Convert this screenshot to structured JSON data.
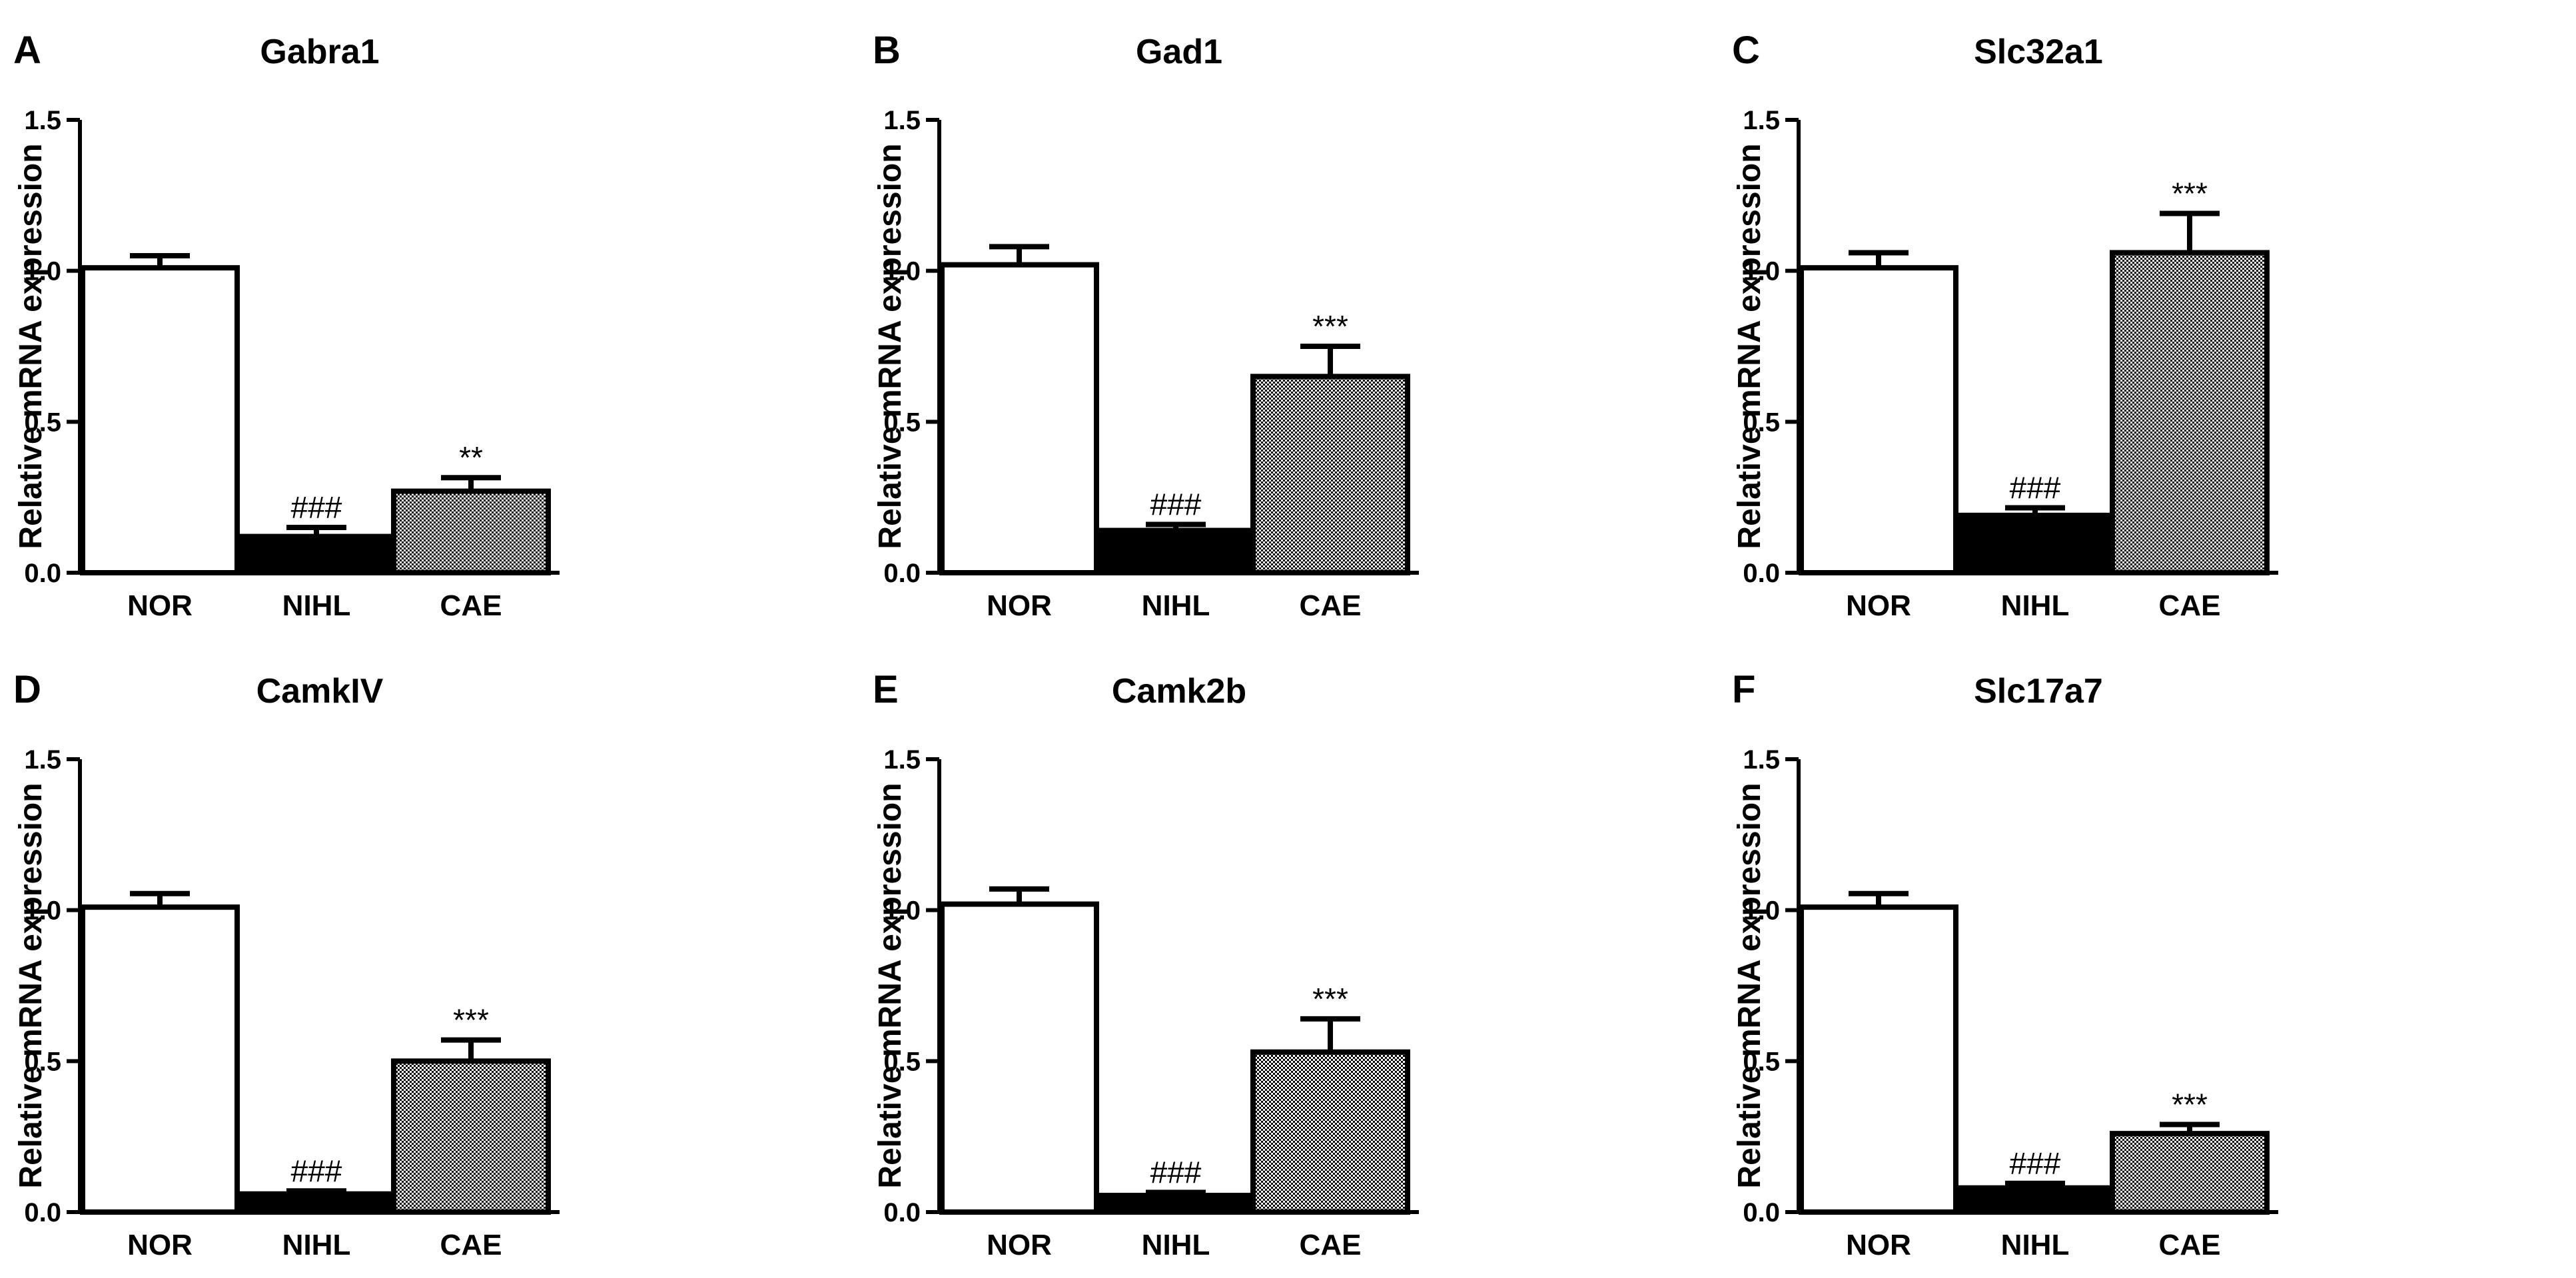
{
  "figure": {
    "ylabel": "Relative mRNA expression",
    "colors": {
      "outline": "#000000",
      "nor_fill": "#ffffff",
      "nihl_fill": "#000000",
      "cae_pattern": "checker-dots"
    }
  },
  "chart_data": [
    {
      "type": "bar",
      "letter": "A",
      "title": "Gabra1",
      "ylabel": "Relative mRNA expression",
      "ylim": [
        0,
        1.5
      ],
      "yticks": [
        "0.0",
        "0.5",
        "1.0",
        "1.5"
      ],
      "categories": [
        "NOR",
        "NIHL",
        "CAE"
      ],
      "values": [
        1.01,
        0.12,
        0.27
      ],
      "errors": [
        0.04,
        0.03,
        0.045
      ],
      "annotations": [
        "",
        "###",
        "**"
      ]
    },
    {
      "type": "bar",
      "letter": "B",
      "title": "Gad1",
      "ylabel": "Relative mRNA expression",
      "ylim": [
        0,
        1.5
      ],
      "yticks": [
        "0.0",
        "0.5",
        "1.0",
        "1.5"
      ],
      "categories": [
        "NOR",
        "NIHL",
        "CAE"
      ],
      "values": [
        1.02,
        0.14,
        0.65
      ],
      "errors": [
        0.06,
        0.02,
        0.1
      ],
      "annotations": [
        "",
        "###",
        "***"
      ]
    },
    {
      "type": "bar",
      "letter": "C",
      "title": "Slc32a1",
      "ylabel": "Relative mRNA expression",
      "ylim": [
        0,
        1.5
      ],
      "yticks": [
        "0.0",
        "0.5",
        "1.0",
        "1.5"
      ],
      "categories": [
        "NOR",
        "NIHL",
        "CAE"
      ],
      "values": [
        1.01,
        0.19,
        1.06
      ],
      "errors": [
        0.05,
        0.025,
        0.13
      ],
      "annotations": [
        "",
        "###",
        "***"
      ]
    },
    {
      "type": "bar",
      "letter": "D",
      "title": "CamkIV",
      "ylabel": "Relative mRNA expression",
      "ylim": [
        0,
        1.5
      ],
      "yticks": [
        "0.0",
        "0.5",
        "1.0",
        "1.5"
      ],
      "categories": [
        "NOR",
        "NIHL",
        "CAE"
      ],
      "values": [
        1.01,
        0.06,
        0.5
      ],
      "errors": [
        0.045,
        0.01,
        0.07
      ],
      "annotations": [
        "",
        "###",
        "***"
      ]
    },
    {
      "type": "bar",
      "letter": "E",
      "title": "Camk2b",
      "ylabel": "Relative mRNA expression",
      "ylim": [
        0,
        1.5
      ],
      "yticks": [
        "0.0",
        "0.5",
        "1.0",
        "1.5"
      ],
      "categories": [
        "NOR",
        "NIHL",
        "CAE"
      ],
      "values": [
        1.02,
        0.055,
        0.53
      ],
      "errors": [
        0.05,
        0.01,
        0.11
      ],
      "annotations": [
        "",
        "###",
        "***"
      ]
    },
    {
      "type": "bar",
      "letter": "F",
      "title": "Slc17a7",
      "ylabel": "Relative mRNA expression",
      "ylim": [
        0,
        1.5
      ],
      "yticks": [
        "0.0",
        "0.5",
        "1.0",
        "1.5"
      ],
      "categories": [
        "NOR",
        "NIHL",
        "CAE"
      ],
      "values": [
        1.01,
        0.08,
        0.26
      ],
      "errors": [
        0.045,
        0.015,
        0.03
      ],
      "annotations": [
        "",
        "###",
        "***"
      ]
    }
  ]
}
